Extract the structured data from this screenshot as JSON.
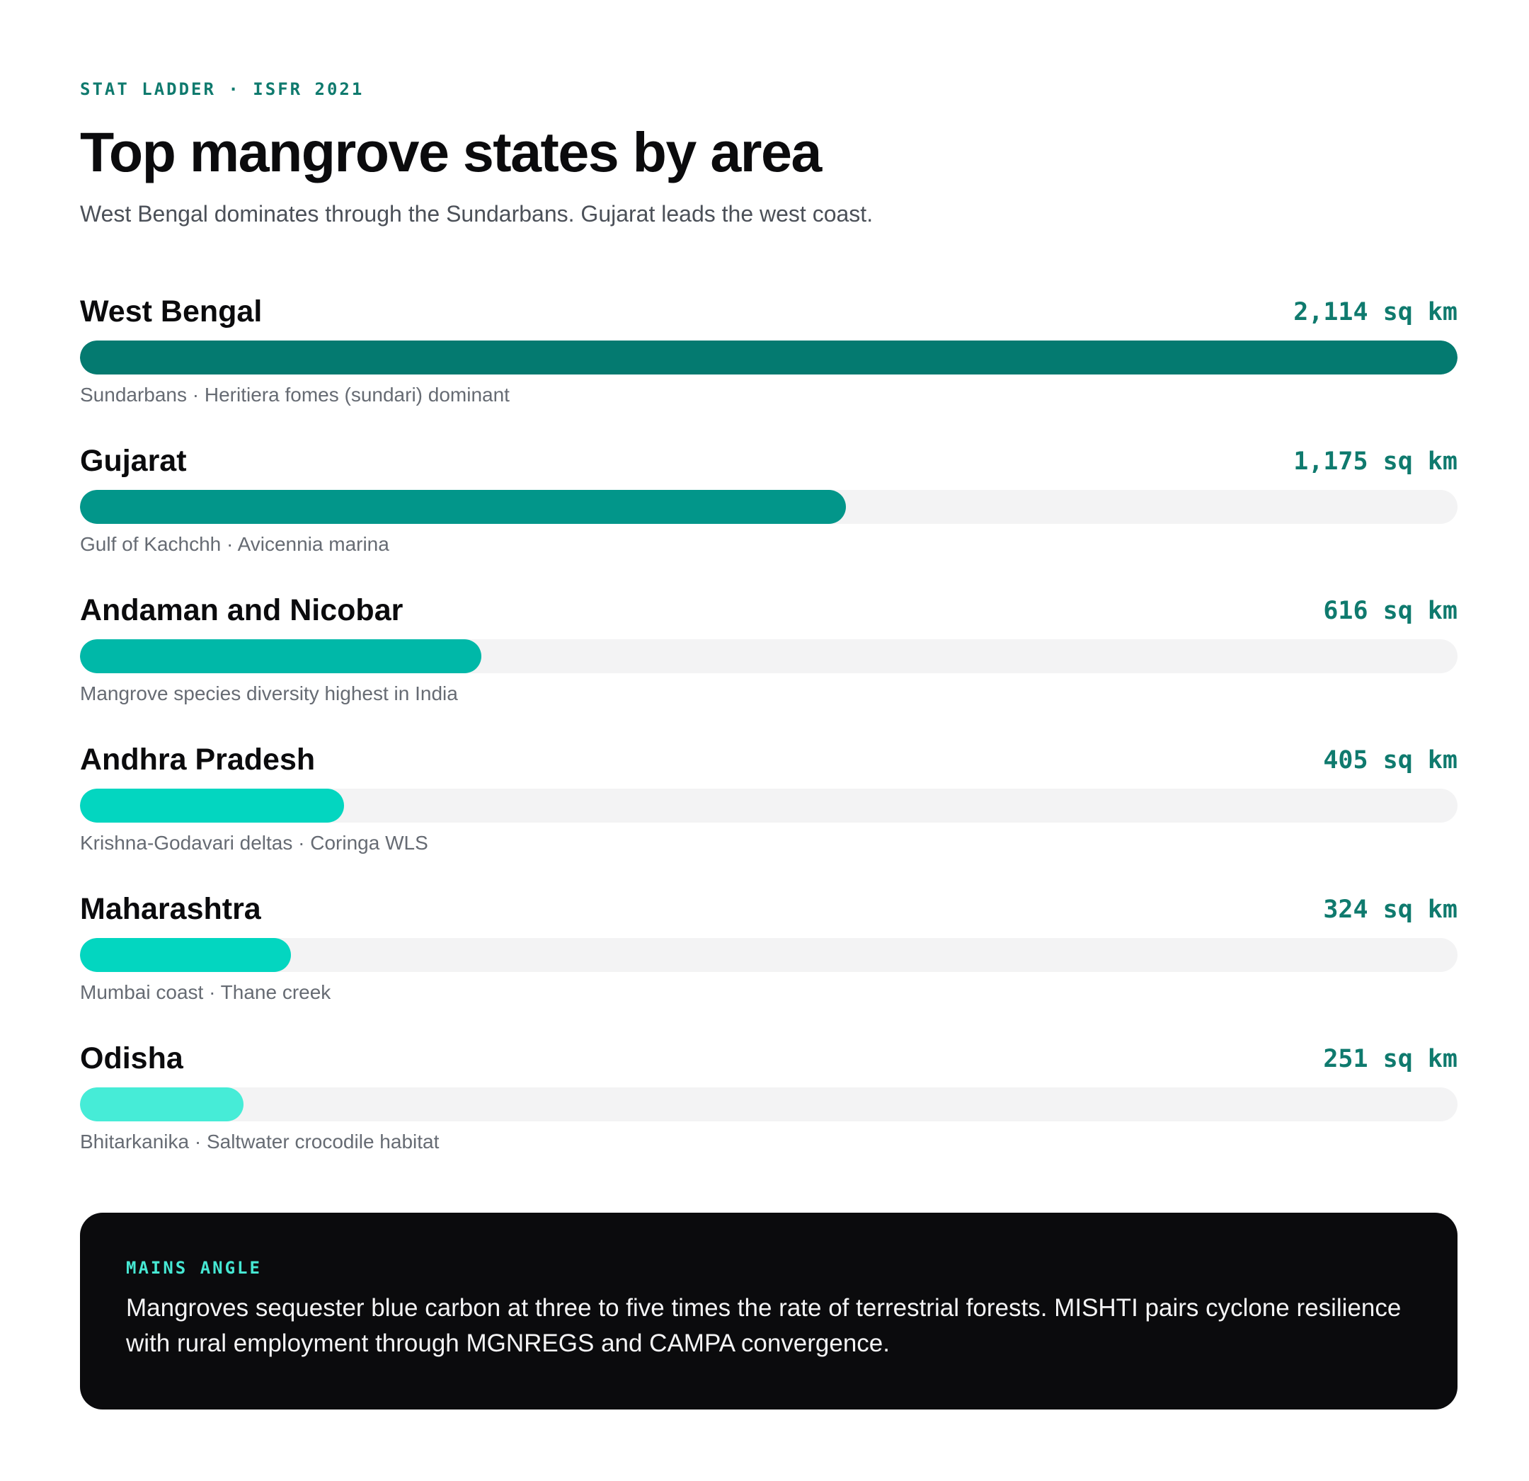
{
  "header": {
    "eyebrow": "STAT LADDER · ISFR 2021",
    "title": "Top mangrove states by area",
    "subtitle": "West Bengal dominates through the Sundarbans. Gujarat leads the west coast."
  },
  "chart_data": {
    "type": "bar",
    "orientation": "horizontal",
    "title": "Top mangrove states by area",
    "unit": "sq km",
    "categories": [
      "West Bengal",
      "Gujarat",
      "Andaman and Nicobar",
      "Andhra Pradesh",
      "Maharashtra",
      "Odisha"
    ],
    "values": [
      2114,
      1175,
      616,
      405,
      324,
      251
    ],
    "value_labels": [
      "2,114 sq km",
      "1,175 sq km",
      "616 sq km",
      "405 sq km",
      "324 sq km",
      "251 sq km"
    ],
    "notes": [
      "Sundarbans · Heritiera fomes (sundari) dominant",
      "Gulf of Kachchh · Avicennia marina",
      "Mangrove species diversity highest in India",
      "Krishna-Godavari deltas · Coringa WLS",
      "Mumbai coast · Thane creek",
      "Bhitarkanika · Saltwater crocodile habitat"
    ],
    "colors": [
      "#047a70",
      "#02968a",
      "#00b8a8",
      "#03d6c0",
      "#03d6c0",
      "#46ecd7"
    ],
    "track_color": "#f3f3f4",
    "value_color": "#0f7a6e",
    "xlim": [
      0,
      2114
    ]
  },
  "callout": {
    "label": "MAINS ANGLE",
    "text": "Mangroves sequester blue carbon at three to five times the rate of terrestrial forests. MISHTI pairs cyclone resilience with rural employment through MGNREGS and CAMPA convergence."
  }
}
